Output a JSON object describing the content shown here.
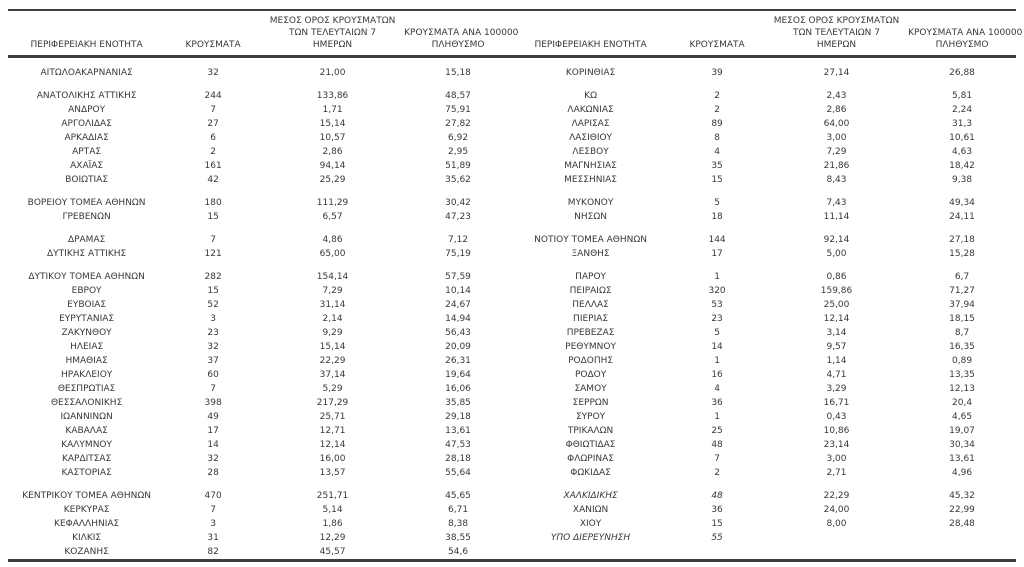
{
  "table": {
    "headers": {
      "region": "ΠΕΡΙΦΕΡΕΙΑΚΗ ΕΝΟΤΗΤΑ",
      "cases": "ΚΡΟΥΣΜΑΤΑ",
      "avg7_line1": "ΜΕΣΟΣ ΟΡΟΣ ΚΡΟΥΣΜΑΤΩΝ",
      "avg7_line2": "ΤΩΝ ΤΕΛΕΥΤΑΙΩΝ 7",
      "avg7_line3": "ΗΜΕΡΩΝ",
      "per100k_line1": "ΚΡΟΥΣΜΑΤΑ ΑΝΑ 100000",
      "per100k_line2": "ΠΛΗΘΥΣΜΟ"
    },
    "rows": [
      {
        "left": {
          "name": "ΑΙΤΩΛΟΑΚΑΡΝΑΝΙΑΣ",
          "cases": "32",
          "avg7": "21,00",
          "per100k": "15,18"
        },
        "right": {
          "name": "ΚΟΡΙΝΘΙΑΣ",
          "cases": "39",
          "avg7": "27,14",
          "per100k": "26,88"
        }
      },
      {
        "spacer": true
      },
      {
        "left": {
          "name": "ΑΝΑΤΟΛΙΚΗΣ ΑΤΤΙΚΗΣ",
          "cases": "244",
          "avg7": "133,86",
          "per100k": "48,57"
        },
        "right": {
          "name": "ΚΩ",
          "cases": "2",
          "avg7": "2,43",
          "per100k": "5,81"
        }
      },
      {
        "left": {
          "name": "ΑΝΔΡΟΥ",
          "cases": "7",
          "avg7": "1,71",
          "per100k": "75,91"
        },
        "right": {
          "name": "ΛΑΚΩΝΙΑΣ",
          "cases": "2",
          "avg7": "2,86",
          "per100k": "2,24"
        }
      },
      {
        "left": {
          "name": "ΑΡΓΟΛΙΔΑΣ",
          "cases": "27",
          "avg7": "15,14",
          "per100k": "27,82"
        },
        "right": {
          "name": "ΛΑΡΙΣΑΣ",
          "cases": "89",
          "avg7": "64,00",
          "per100k": "31,3"
        }
      },
      {
        "left": {
          "name": "ΑΡΚΑΔΙΑΣ",
          "cases": "6",
          "avg7": "10,57",
          "per100k": "6,92"
        },
        "right": {
          "name": "ΛΑΣΙΘΙΟΥ",
          "cases": "8",
          "avg7": "3,00",
          "per100k": "10,61"
        }
      },
      {
        "left": {
          "name": "ΑΡΤΑΣ",
          "cases": "2",
          "avg7": "2,86",
          "per100k": "2,95"
        },
        "right": {
          "name": "ΛΕΣΒΟΥ",
          "cases": "4",
          "avg7": "7,29",
          "per100k": "4,63"
        }
      },
      {
        "left": {
          "name": "ΑΧΑΪΑΣ",
          "cases": "161",
          "avg7": "94,14",
          "per100k": "51,89"
        },
        "right": {
          "name": "ΜΑΓΝΗΣΙΑΣ",
          "cases": "35",
          "avg7": "21,86",
          "per100k": "18,42"
        }
      },
      {
        "left": {
          "name": "ΒΟΙΩΤΙΑΣ",
          "cases": "42",
          "avg7": "25,29",
          "per100k": "35,62"
        },
        "right": {
          "name": "ΜΕΣΣΗΝΙΑΣ",
          "cases": "15",
          "avg7": "8,43",
          "per100k": "9,38"
        }
      },
      {
        "spacer": true
      },
      {
        "left": {
          "name": "ΒΟΡΕΙΟΥ ΤΟΜΕΑ ΑΘΗΝΩΝ",
          "cases": "180",
          "avg7": "111,29",
          "per100k": "30,42"
        },
        "right": {
          "name": "ΜΥΚΟΝΟΥ",
          "cases": "5",
          "avg7": "7,43",
          "per100k": "49,34"
        }
      },
      {
        "left": {
          "name": "ΓΡΕΒΕΝΩΝ",
          "cases": "15",
          "avg7": "6,57",
          "per100k": "47,23"
        },
        "right": {
          "name": "ΝΗΣΩΝ",
          "cases": "18",
          "avg7": "11,14",
          "per100k": "24,11"
        }
      },
      {
        "spacer": true
      },
      {
        "left": {
          "name": "ΔΡΑΜΑΣ",
          "cases": "7",
          "avg7": "4,86",
          "per100k": "7,12"
        },
        "right": {
          "name": "ΝΟΤΙΟΥ ΤΟΜΕΑ ΑΘΗΝΩΝ",
          "cases": "144",
          "avg7": "92,14",
          "per100k": "27,18"
        }
      },
      {
        "left": {
          "name": "ΔΥΤΙΚΗΣ ΑΤΤΙΚΗΣ",
          "cases": "121",
          "avg7": "65,00",
          "per100k": "75,19"
        },
        "right": {
          "name": "ΞΑΝΘΗΣ",
          "cases": "17",
          "avg7": "5,00",
          "per100k": "15,28"
        }
      },
      {
        "spacer": true
      },
      {
        "left": {
          "name": "ΔΥΤΙΚΟΥ ΤΟΜΕΑ ΑΘΗΝΩΝ",
          "cases": "282",
          "avg7": "154,14",
          "per100k": "57,59"
        },
        "right": {
          "name": "ΠΑΡΟΥ",
          "cases": "1",
          "avg7": "0,86",
          "per100k": "6,7"
        }
      },
      {
        "left": {
          "name": "ΕΒΡΟΥ",
          "cases": "15",
          "avg7": "7,29",
          "per100k": "10,14"
        },
        "right": {
          "name": "ΠΕΙΡΑΙΩΣ",
          "cases": "320",
          "avg7": "159,86",
          "per100k": "71,27"
        }
      },
      {
        "left": {
          "name": "ΕΥΒΟΙΑΣ",
          "cases": "52",
          "avg7": "31,14",
          "per100k": "24,67"
        },
        "right": {
          "name": "ΠΕΛΛΑΣ",
          "cases": "53",
          "avg7": "25,00",
          "per100k": "37,94"
        }
      },
      {
        "left": {
          "name": "ΕΥΡΥΤΑΝΙΑΣ",
          "cases": "3",
          "avg7": "2,14",
          "per100k": "14,94"
        },
        "right": {
          "name": "ΠΙΕΡΙΑΣ",
          "cases": "23",
          "avg7": "12,14",
          "per100k": "18,15"
        }
      },
      {
        "left": {
          "name": "ΖΑΚΥΝΘΟΥ",
          "cases": "23",
          "avg7": "9,29",
          "per100k": "56,43"
        },
        "right": {
          "name": "ΠΡΕΒΕΖΑΣ",
          "cases": "5",
          "avg7": "3,14",
          "per100k": "8,7"
        }
      },
      {
        "left": {
          "name": "ΗΛΕΙΑΣ",
          "cases": "32",
          "avg7": "15,14",
          "per100k": "20,09"
        },
        "right": {
          "name": "ΡΕΘΥΜΝΟΥ",
          "cases": "14",
          "avg7": "9,57",
          "per100k": "16,35"
        }
      },
      {
        "left": {
          "name": "ΗΜΑΘΙΑΣ",
          "cases": "37",
          "avg7": "22,29",
          "per100k": "26,31"
        },
        "right": {
          "name": "ΡΟΔΟΠΗΣ",
          "cases": "1",
          "avg7": "1,14",
          "per100k": "0,89"
        }
      },
      {
        "left": {
          "name": "ΗΡΑΚΛΕΙΟΥ",
          "cases": "60",
          "avg7": "37,14",
          "per100k": "19,64"
        },
        "right": {
          "name": "ΡΟΔΟΥ",
          "cases": "16",
          "avg7": "4,71",
          "per100k": "13,35"
        }
      },
      {
        "left": {
          "name": "ΘΕΣΠΡΩΤΙΑΣ",
          "cases": "7",
          "avg7": "5,29",
          "per100k": "16,06"
        },
        "right": {
          "name": "ΣΑΜΟΥ",
          "cases": "4",
          "avg7": "3,29",
          "per100k": "12,13"
        }
      },
      {
        "left": {
          "name": "ΘΕΣΣΑΛΟΝΙΚΗΣ",
          "cases": "398",
          "avg7": "217,29",
          "per100k": "35,85"
        },
        "right": {
          "name": "ΣΕΡΡΩΝ",
          "cases": "36",
          "avg7": "16,71",
          "per100k": "20,4"
        }
      },
      {
        "left": {
          "name": "ΙΩΑΝΝΙΝΩΝ",
          "cases": "49",
          "avg7": "25,71",
          "per100k": "29,18"
        },
        "right": {
          "name": "ΣΥΡΟΥ",
          "cases": "1",
          "avg7": "0,43",
          "per100k": "4,65"
        }
      },
      {
        "left": {
          "name": "ΚΑΒΑΛΑΣ",
          "cases": "17",
          "avg7": "12,71",
          "per100k": "13,61"
        },
        "right": {
          "name": "ΤΡΙΚΑΛΩΝ",
          "cases": "25",
          "avg7": "10,86",
          "per100k": "19,07"
        }
      },
      {
        "left": {
          "name": "ΚΑΛΥΜΝΟΥ",
          "cases": "14",
          "avg7": "12,14",
          "per100k": "47,53"
        },
        "right": {
          "name": "ΦΘΙΩΤΙΔΑΣ",
          "cases": "48",
          "avg7": "23,14",
          "per100k": "30,34"
        }
      },
      {
        "left": {
          "name": "ΚΑΡΔΙΤΣΑΣ",
          "cases": "32",
          "avg7": "16,00",
          "per100k": "28,18"
        },
        "right": {
          "name": "ΦΛΩΡΙΝΑΣ",
          "cases": "7",
          "avg7": "3,00",
          "per100k": "13,61"
        }
      },
      {
        "left": {
          "name": "ΚΑΣΤΟΡΙΑΣ",
          "cases": "28",
          "avg7": "13,57",
          "per100k": "55,64"
        },
        "right": {
          "name": "ΦΩΚΙΔΑΣ",
          "cases": "2",
          "avg7": "2,71",
          "per100k": "4,96"
        }
      },
      {
        "spacer": true
      },
      {
        "left": {
          "name": "ΚΕΝΤΡΙΚΟΥ ΤΟΜΕΑ ΑΘΗΝΩΝ",
          "cases": "470",
          "avg7": "251,71",
          "per100k": "45,65"
        },
        "right": {
          "name": "ΧΑΛΚΙΔΙΚΗΣ",
          "cases": "48",
          "avg7": "22,29",
          "per100k": "45,32",
          "italic": true
        }
      },
      {
        "left": {
          "name": "ΚΕΡΚΥΡΑΣ",
          "cases": "7",
          "avg7": "5,14",
          "per100k": "6,71"
        },
        "right": {
          "name": "ΧΑΝΙΩΝ",
          "cases": "36",
          "avg7": "24,00",
          "per100k": "22,99"
        }
      },
      {
        "left": {
          "name": "ΚΕΦΑΛΛΗΝΙΑΣ",
          "cases": "3",
          "avg7": "1,86",
          "per100k": "8,38"
        },
        "right": {
          "name": "ΧΙΟΥ",
          "cases": "15",
          "avg7": "8,00",
          "per100k": "28,48"
        }
      },
      {
        "left": {
          "name": "ΚΙΛΚΙΣ",
          "cases": "31",
          "avg7": "12,29",
          "per100k": "38,55"
        },
        "right": {
          "name": "ΥΠΟ ΔΙΕΡΕΥΝΗΣΗ",
          "cases": "55",
          "avg7": "",
          "per100k": "",
          "italic": true
        }
      },
      {
        "left": {
          "name": "ΚΟΖΑΝΗΣ",
          "cases": "82",
          "avg7": "45,57",
          "per100k": "54,6"
        },
        "right": {
          "name": "",
          "cases": "",
          "avg7": "",
          "per100k": ""
        }
      }
    ]
  },
  "colors": {
    "text": "#383838",
    "rule": "#3e3e3e",
    "background": "#ffffff"
  }
}
